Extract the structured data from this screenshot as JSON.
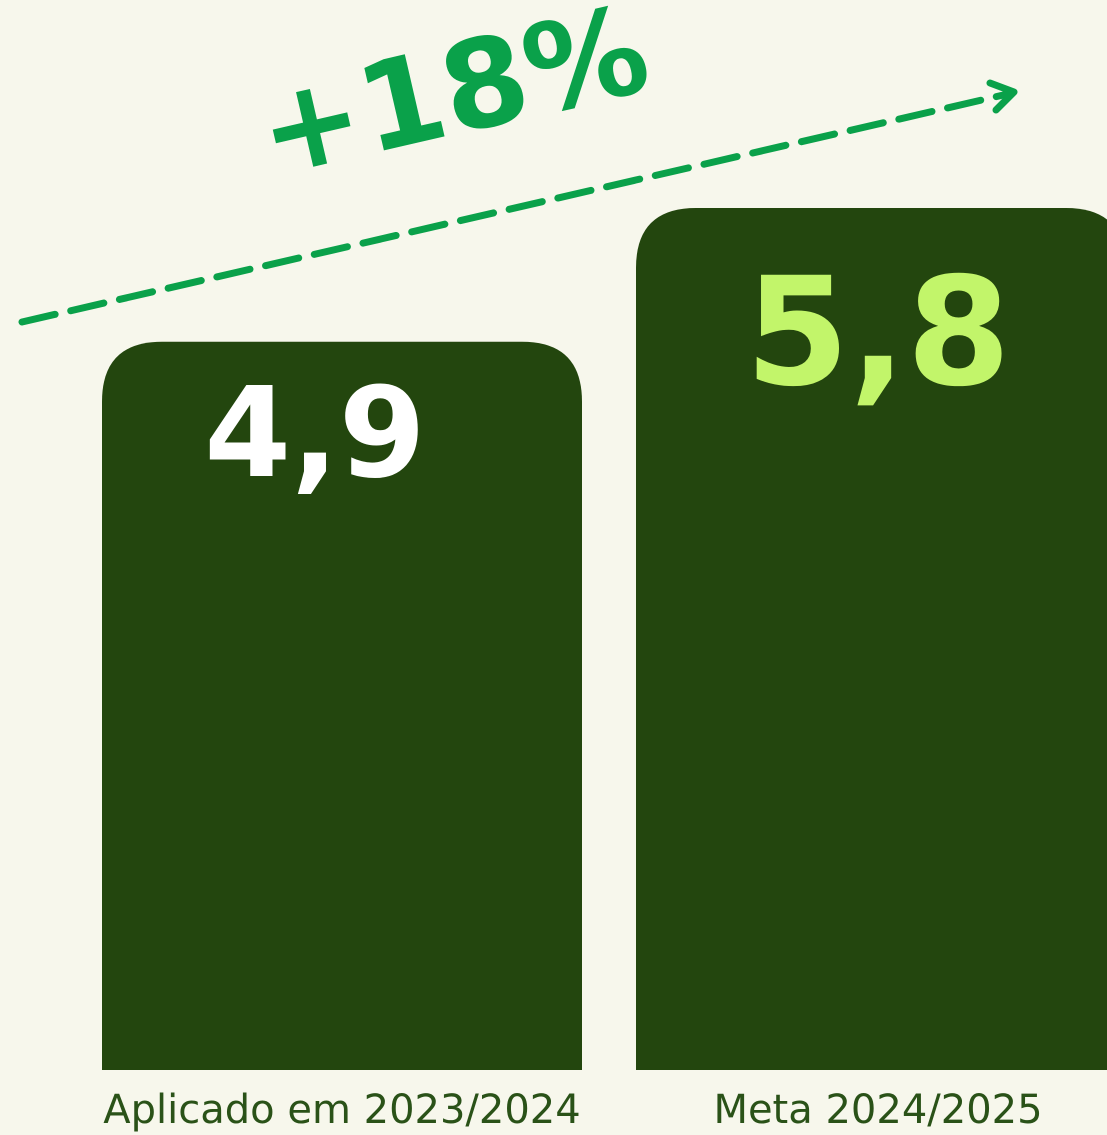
{
  "chart_data": {
    "type": "bar",
    "annotation": "+18%",
    "categories": [
      "Aplicado em 2023/2024",
      "Meta 2024/2025"
    ],
    "values": [
      4.9,
      5.8
    ],
    "value_labels": [
      "4,9",
      "5,8"
    ],
    "color": "#23460e",
    "label_colors": [
      "#ffffff",
      "#c2f56a"
    ],
    "annotation_color": "#0aa14a",
    "ylim": [
      0,
      7.2
    ]
  }
}
